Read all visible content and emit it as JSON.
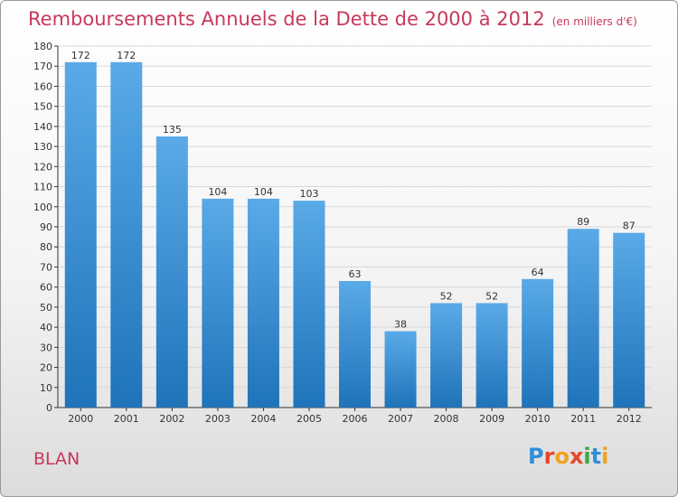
{
  "header": {
    "title": "Remboursements Annuels de la Dette de 2000 à 2012",
    "unit": "(en milliers d'€)"
  },
  "footer": {
    "city": "BLAN",
    "logo": {
      "letters": [
        "P",
        "r",
        "o",
        "x",
        "i",
        "t",
        "i"
      ],
      "colors": [
        "#2f8fd8",
        "#e8452c",
        "#f0a11e",
        "#e8452c",
        "#3aa845",
        "#2f8fd8",
        "#f0a11e"
      ]
    }
  },
  "colors": {
    "bar_light": "#5aaae8",
    "bar_dark": "#1f73b8",
    "title": "#c8385a",
    "grid": "#d8d8d8",
    "axis": "#333333"
  },
  "chart_data": {
    "type": "bar",
    "categories": [
      "2000",
      "2001",
      "2002",
      "2003",
      "2004",
      "2005",
      "2006",
      "2007",
      "2008",
      "2009",
      "2010",
      "2011",
      "2012"
    ],
    "values": [
      172,
      172,
      135,
      104,
      104,
      103,
      63,
      38,
      52,
      52,
      64,
      89,
      87
    ],
    "title": "Remboursements Annuels de la Dette de 2000 à 2012",
    "ylim": [
      0,
      180
    ],
    "yticks": [
      0,
      10,
      20,
      30,
      40,
      50,
      60,
      70,
      80,
      90,
      100,
      110,
      120,
      130,
      140,
      150,
      160,
      170,
      180
    ],
    "grid": true,
    "data_labels": true
  }
}
